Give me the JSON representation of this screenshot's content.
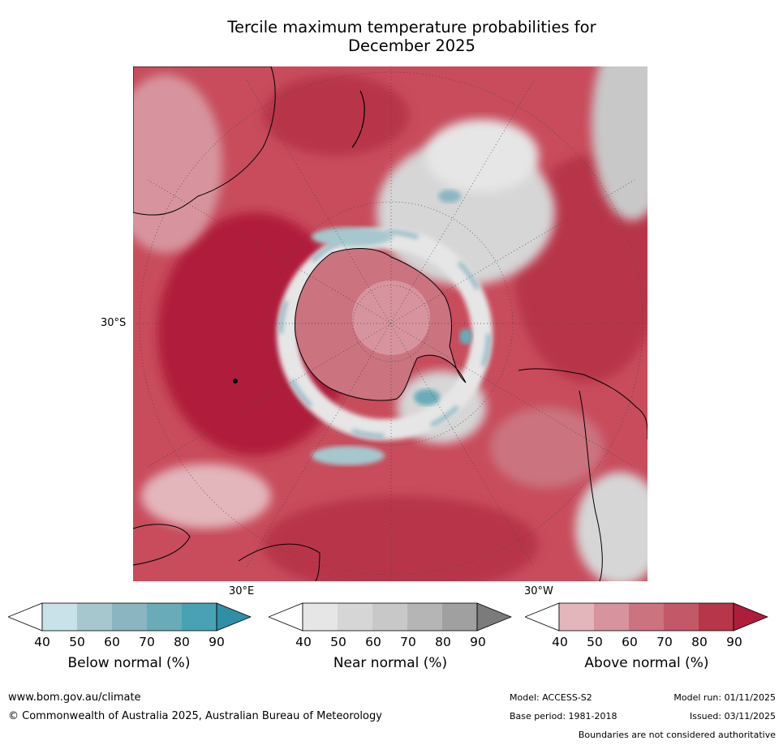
{
  "title_line1": "Tercile maximum temperature probabilities for",
  "title_line2": "December 2025",
  "map": {
    "lat_label": "30°S",
    "lon_label_east": "30°E",
    "lon_label_west": "30°W"
  },
  "colorbars": [
    {
      "label": "Below normal (%)",
      "ticks": [
        "40",
        "50",
        "60",
        "70",
        "80",
        "90"
      ],
      "colors": [
        "#ffffff",
        "#c9e1e8",
        "#a5c7cd",
        "#8cb5c2",
        "#6aabb8",
        "#48a2b3",
        "#2e8fa5"
      ]
    },
    {
      "label": "Near normal (%)",
      "ticks": [
        "40",
        "50",
        "60",
        "70",
        "80",
        "90"
      ],
      "colors": [
        "#ffffff",
        "#e6e6e6",
        "#d6d6d6",
        "#c8c8c8",
        "#b5b5b5",
        "#a0a0a0",
        "#7b7b7b"
      ]
    },
    {
      "label": "Above normal (%)",
      "ticks": [
        "40",
        "50",
        "60",
        "70",
        "80",
        "90"
      ],
      "colors": [
        "#ffffff",
        "#e3b6bc",
        "#d7949e",
        "#cb737f",
        "#c35869",
        "#b83649",
        "#b01d3b"
      ]
    }
  ],
  "footer": {
    "website": "www.bom.gov.au/climate",
    "copyright": "© Commonwealth of Australia 2025, Australian Bureau of Meteorology",
    "model": "Model: ACCESS-S2",
    "base_period": "Base period: 1981-2018",
    "model_run": "Model run: 01/11/2025",
    "issued": "Issued: 03/11/2025",
    "disclaimer": "Boundaries are not considered authoritative"
  }
}
